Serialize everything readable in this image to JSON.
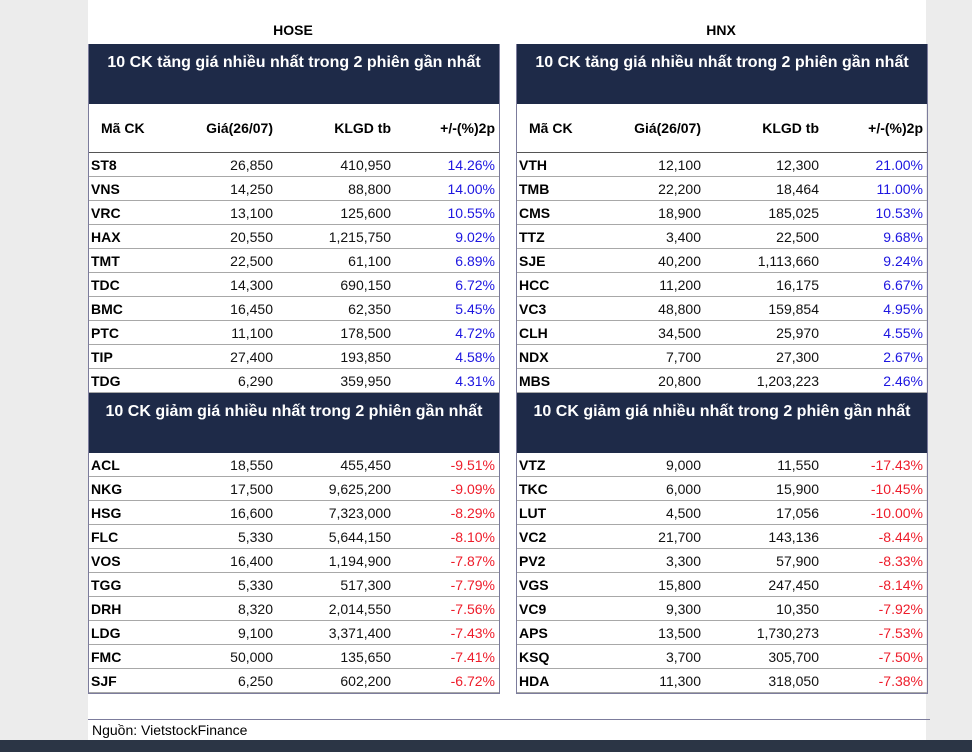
{
  "exchanges": {
    "hose": "HOSE",
    "hnx": "HNX"
  },
  "headers": [
    "Mã CK",
    "Giá(26/07)",
    "KLGD tb",
    "+/-(%)2p"
  ],
  "hose": {
    "gain_title": "10 CK tăng giá nhiều nhất trong 2 phiên gần nhất",
    "loss_title": "10 CK giảm giá nhiều nhất trong 2 phiên gần nhất",
    "gainers": [
      [
        "ST8",
        "26,850",
        "410,950",
        "14.26%"
      ],
      [
        "VNS",
        "14,250",
        "88,800",
        "14.00%"
      ],
      [
        "VRC",
        "13,100",
        "125,600",
        "10.55%"
      ],
      [
        "HAX",
        "20,550",
        "1,215,750",
        "9.02%"
      ],
      [
        "TMT",
        "22,500",
        "61,100",
        "6.89%"
      ],
      [
        "TDC",
        "14,300",
        "690,150",
        "6.72%"
      ],
      [
        "BMC",
        "16,450",
        "62,350",
        "5.45%"
      ],
      [
        "PTC",
        "11,100",
        "178,500",
        "4.72%"
      ],
      [
        "TIP",
        "27,400",
        "193,850",
        "4.58%"
      ],
      [
        "TDG",
        "6,290",
        "359,950",
        "4.31%"
      ]
    ],
    "losers": [
      [
        "ACL",
        "18,550",
        "455,450",
        "-9.51%"
      ],
      [
        "NKG",
        "17,500",
        "9,625,200",
        "-9.09%"
      ],
      [
        "HSG",
        "16,600",
        "7,323,000",
        "-8.29%"
      ],
      [
        "FLC",
        "5,330",
        "5,644,150",
        "-8.10%"
      ],
      [
        "VOS",
        "16,400",
        "1,194,900",
        "-7.87%"
      ],
      [
        "TGG",
        "5,330",
        "517,300",
        "-7.79%"
      ],
      [
        "DRH",
        "8,320",
        "2,014,550",
        "-7.56%"
      ],
      [
        "LDG",
        "9,100",
        "3,371,400",
        "-7.43%"
      ],
      [
        "FMC",
        "50,000",
        "135,650",
        "-7.41%"
      ],
      [
        "SJF",
        "6,250",
        "602,200",
        "-6.72%"
      ]
    ]
  },
  "hnx": {
    "gain_title": "10 CK tăng giá nhiều nhất trong 2 phiên gần nhất",
    "loss_title": "10 CK giảm giá nhiều nhất trong 2 phiên gần nhất",
    "gainers": [
      [
        "VTH",
        "12,100",
        "12,300",
        "21.00%"
      ],
      [
        "TMB",
        "22,200",
        "18,464",
        "11.00%"
      ],
      [
        "CMS",
        "18,900",
        "185,025",
        "10.53%"
      ],
      [
        "TTZ",
        "3,400",
        "22,500",
        "9.68%"
      ],
      [
        "SJE",
        "40,200",
        "1,113,660",
        "9.24%"
      ],
      [
        "HCC",
        "11,200",
        "16,175",
        "6.67%"
      ],
      [
        "VC3",
        "48,800",
        "159,854",
        "4.95%"
      ],
      [
        "CLH",
        "34,500",
        "25,970",
        "4.55%"
      ],
      [
        "NDX",
        "7,700",
        "27,300",
        "2.67%"
      ],
      [
        "MBS",
        "20,800",
        "1,203,223",
        "2.46%"
      ]
    ],
    "losers": [
      [
        "VTZ",
        "9,000",
        "11,550",
        "-17.43%"
      ],
      [
        "TKC",
        "6,000",
        "15,900",
        "-10.45%"
      ],
      [
        "LUT",
        "4,500",
        "17,056",
        "-10.00%"
      ],
      [
        "VC2",
        "21,700",
        "143,136",
        "-8.44%"
      ],
      [
        "PV2",
        "3,300",
        "57,900",
        "-8.33%"
      ],
      [
        "VGS",
        "15,800",
        "247,450",
        "-8.14%"
      ],
      [
        "VC9",
        "9,300",
        "10,350",
        "-7.92%"
      ],
      [
        "APS",
        "13,500",
        "1,730,273",
        "-7.53%"
      ],
      [
        "KSQ",
        "3,700",
        "305,700",
        "-7.50%"
      ],
      [
        "HDA",
        "11,300",
        "318,050",
        "-7.38%"
      ]
    ]
  },
  "footer": "Nguồn: VietstockFinance",
  "colors": {
    "title_bg": "#1e2a48",
    "gain_text": "#1d16e0",
    "loss_text": "#ee1c2a"
  }
}
